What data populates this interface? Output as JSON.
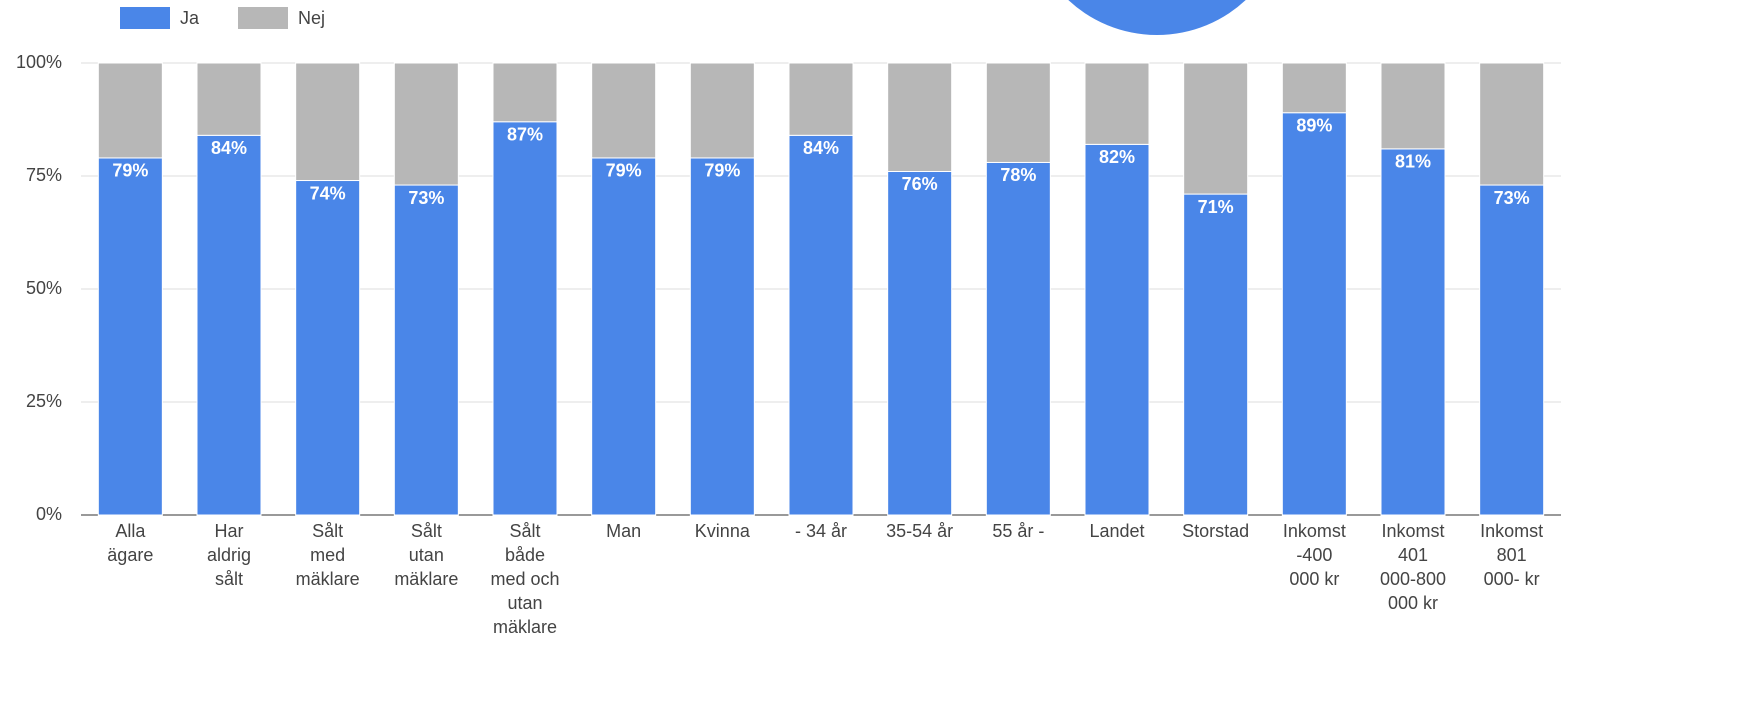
{
  "chart_data": {
    "type": "stacked_bar",
    "categories": [
      "Alla\nägare",
      "Har\naldrig\nsålt",
      "Sålt\nmed\nmäklare",
      "Sålt\nutan\nmäklare",
      "Sålt\nbåde\nmed och\nutan\nmäklare",
      "Man",
      "Kvinna",
      "- 34 år",
      "35-54 år",
      "55 år -",
      "Landet",
      "Storstad",
      "Inkomst\n-400\n000 kr",
      "Inkomst\n401\n000-800\n000 kr",
      "Inkomst\n801\n000- kr"
    ],
    "series": [
      {
        "name": "Ja",
        "color": "#4a86e8",
        "values": [
          79,
          84,
          74,
          73,
          87,
          79,
          79,
          84,
          76,
          78,
          82,
          71,
          89,
          81,
          73
        ],
        "value_labels": [
          "79%",
          "84%",
          "74%",
          "73%",
          "87%",
          "79%",
          "79%",
          "84%",
          "76%",
          "78%",
          "82%",
          "71%",
          "89%",
          "81%",
          "73%"
        ]
      },
      {
        "name": "Nej",
        "color": "#b7b7b7",
        "values": [
          21,
          16,
          26,
          27,
          13,
          21,
          21,
          16,
          24,
          22,
          18,
          29,
          11,
          19,
          27
        ]
      }
    ],
    "ylim": [
      0,
      100
    ],
    "yticks": [
      {
        "value": 0,
        "label": "0%"
      },
      {
        "value": 25,
        "label": "25%"
      },
      {
        "value": 50,
        "label": "50%"
      },
      {
        "value": 75,
        "label": "75%"
      },
      {
        "value": 100,
        "label": "100%"
      }
    ],
    "grid": true,
    "legend": "top-left"
  }
}
